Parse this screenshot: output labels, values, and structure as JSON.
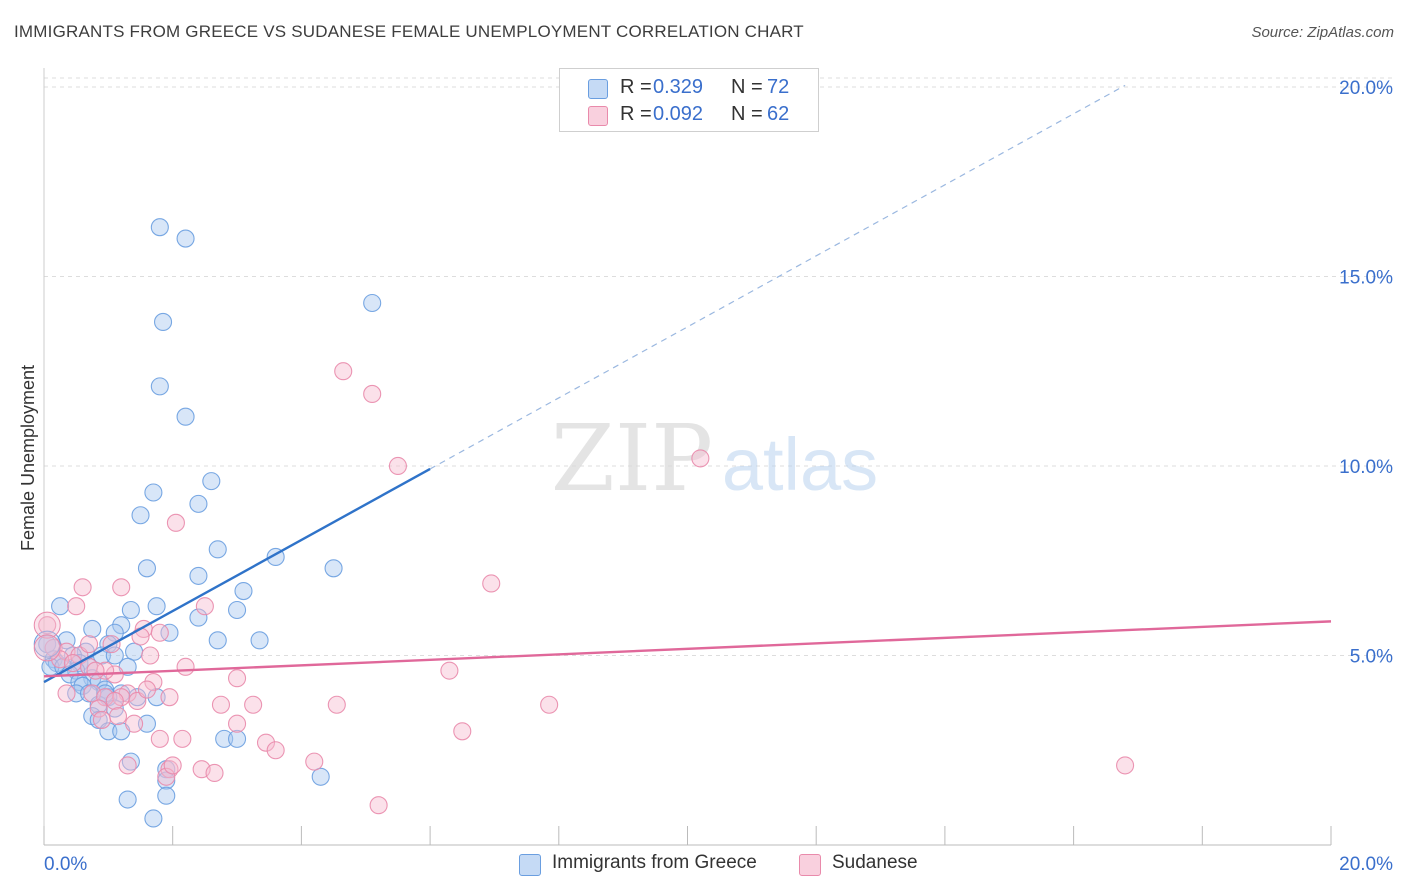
{
  "title": "IMMIGRANTS FROM GREECE VS SUDANESE FEMALE UNEMPLOYMENT CORRELATION CHART",
  "source": "Source: ZipAtlas.com",
  "watermark": {
    "zip": "ZIP",
    "atlas": "atlas"
  },
  "colors": {
    "blue_fill": "#a9c8f0",
    "blue_stroke": "#6a9ee0",
    "blue_line": "#2f73c9",
    "pink_fill": "#f6bcd0",
    "pink_stroke": "#e98aab",
    "pink_line": "#e0689a",
    "axis_text": "#3a6fcc",
    "grid": "#dddddd"
  },
  "legend": [
    {
      "r_label": "R =",
      "r_value": "0.329",
      "n_label": "N =",
      "n_value": "72"
    },
    {
      "r_label": "R =",
      "r_value": "0.092",
      "n_label": "N =",
      "n_value": "62"
    }
  ],
  "bottom_legend": [
    "Immigrants from Greece",
    "Sudanese"
  ],
  "chart_data": {
    "type": "scatter",
    "title": "IMMIGRANTS FROM GREECE VS SUDANESE FEMALE UNEMPLOYMENT CORRELATION CHART",
    "xlabel": "",
    "ylabel": "Female Unemployment",
    "xlim": [
      0,
      20
    ],
    "ylim": [
      0,
      20.5
    ],
    "x_tick_labels": [
      {
        "value": 0,
        "label": "0.0%"
      },
      {
        "value": 20,
        "label": "20.0%"
      }
    ],
    "y_tick_labels": [
      {
        "value": 5,
        "label": "5.0%"
      },
      {
        "value": 10,
        "label": "10.0%"
      },
      {
        "value": 15,
        "label": "15.0%"
      },
      {
        "value": 20,
        "label": "20.0%"
      }
    ],
    "y_grid": [
      5,
      10,
      15,
      20
    ],
    "x_ticks": [
      0,
      2,
      4,
      6,
      8,
      10,
      12,
      14,
      16,
      18,
      20
    ],
    "series": [
      {
        "name": "Immigrants from Greece",
        "color": "blue",
        "regression": {
          "slope": 0.937,
          "intercept": 4.3,
          "solid_to_x": 6.0,
          "dashed_to_x": 16.8
        },
        "points": [
          [
            1.8,
            16.3
          ],
          [
            2.2,
            16.0
          ],
          [
            5.1,
            14.3
          ],
          [
            1.85,
            13.8
          ],
          [
            1.8,
            12.1
          ],
          [
            2.2,
            11.3
          ],
          [
            2.6,
            9.6
          ],
          [
            1.7,
            9.3
          ],
          [
            2.4,
            9.0
          ],
          [
            1.5,
            8.7
          ],
          [
            2.7,
            7.8
          ],
          [
            3.6,
            7.6
          ],
          [
            4.5,
            7.3
          ],
          [
            1.6,
            7.3
          ],
          [
            2.4,
            7.1
          ],
          [
            3.1,
            6.7
          ],
          [
            0.25,
            6.3
          ],
          [
            1.75,
            6.3
          ],
          [
            1.35,
            6.2
          ],
          [
            3.0,
            6.2
          ],
          [
            2.4,
            6.0
          ],
          [
            0.75,
            5.7
          ],
          [
            1.2,
            5.8
          ],
          [
            1.1,
            5.6
          ],
          [
            1.95,
            5.6
          ],
          [
            2.7,
            5.4
          ],
          [
            3.35,
            5.4
          ],
          [
            0.35,
            5.4
          ],
          [
            0.05,
            5.3
          ],
          [
            1.0,
            5.3
          ],
          [
            1.4,
            5.1
          ],
          [
            0.65,
            5.1
          ],
          [
            0.9,
            5.0
          ],
          [
            1.1,
            5.0
          ],
          [
            0.45,
            5.0
          ],
          [
            0.15,
            4.9
          ],
          [
            0.2,
            4.8
          ],
          [
            0.55,
            4.8
          ],
          [
            0.7,
            4.7
          ],
          [
            0.1,
            4.7
          ],
          [
            0.3,
            4.7
          ],
          [
            0.5,
            4.6
          ],
          [
            1.3,
            4.7
          ],
          [
            0.4,
            4.5
          ],
          [
            0.75,
            4.4
          ],
          [
            0.55,
            4.3
          ],
          [
            0.85,
            4.3
          ],
          [
            0.6,
            4.2
          ],
          [
            0.95,
            4.1
          ],
          [
            0.5,
            4.0
          ],
          [
            0.7,
            4.0
          ],
          [
            1.2,
            4.0
          ],
          [
            1.45,
            3.9
          ],
          [
            1.0,
            3.9
          ],
          [
            1.75,
            3.9
          ],
          [
            0.85,
            3.7
          ],
          [
            1.1,
            3.6
          ],
          [
            0.75,
            3.4
          ],
          [
            0.85,
            3.3
          ],
          [
            1.6,
            3.2
          ],
          [
            1.0,
            3.0
          ],
          [
            1.2,
            3.0
          ],
          [
            2.8,
            2.8
          ],
          [
            3.0,
            2.8
          ],
          [
            1.35,
            2.2
          ],
          [
            1.9,
            2.0
          ],
          [
            4.3,
            1.8
          ],
          [
            1.9,
            1.7
          ],
          [
            1.9,
            1.3
          ],
          [
            1.3,
            1.2
          ],
          [
            1.7,
            0.7
          ],
          [
            0.95,
            4.0
          ]
        ]
      },
      {
        "name": "Sudanese",
        "color": "pink",
        "regression": {
          "slope": 0.0725,
          "intercept": 4.45,
          "solid_to_x": 20.0
        },
        "points": [
          [
            4.65,
            12.5
          ],
          [
            5.1,
            11.9
          ],
          [
            5.5,
            10.0
          ],
          [
            10.2,
            10.2
          ],
          [
            2.05,
            8.5
          ],
          [
            6.95,
            6.9
          ],
          [
            0.6,
            6.8
          ],
          [
            1.2,
            6.8
          ],
          [
            2.5,
            6.3
          ],
          [
            0.05,
            5.8
          ],
          [
            1.55,
            5.7
          ],
          [
            1.8,
            5.6
          ],
          [
            1.5,
            5.5
          ],
          [
            1.05,
            5.3
          ],
          [
            0.15,
            5.2
          ],
          [
            0.35,
            5.1
          ],
          [
            0.55,
            5.0
          ],
          [
            0.25,
            4.9
          ],
          [
            0.45,
            4.8
          ],
          [
            2.2,
            4.7
          ],
          [
            0.7,
            4.7
          ],
          [
            1.1,
            4.5
          ],
          [
            0.95,
            4.6
          ],
          [
            6.3,
            4.6
          ],
          [
            3.0,
            4.4
          ],
          [
            1.7,
            4.3
          ],
          [
            0.35,
            4.0
          ],
          [
            0.75,
            4.0
          ],
          [
            1.3,
            4.0
          ],
          [
            0.95,
            3.9
          ],
          [
            1.2,
            3.9
          ],
          [
            1.95,
            3.9
          ],
          [
            1.1,
            3.8
          ],
          [
            1.45,
            3.8
          ],
          [
            2.75,
            3.7
          ],
          [
            3.25,
            3.7
          ],
          [
            4.55,
            3.7
          ],
          [
            7.85,
            3.7
          ],
          [
            0.85,
            3.6
          ],
          [
            1.15,
            3.4
          ],
          [
            0.9,
            3.3
          ],
          [
            1.4,
            3.2
          ],
          [
            3.0,
            3.2
          ],
          [
            6.5,
            3.0
          ],
          [
            1.8,
            2.8
          ],
          [
            2.15,
            2.8
          ],
          [
            3.45,
            2.7
          ],
          [
            3.6,
            2.5
          ],
          [
            2.45,
            2.0
          ],
          [
            1.3,
            2.1
          ],
          [
            1.95,
            2.0
          ],
          [
            1.9,
            1.8
          ],
          [
            2.65,
            1.9
          ],
          [
            4.2,
            2.2
          ],
          [
            16.8,
            2.1
          ],
          [
            5.2,
            1.05
          ],
          [
            0.5,
            6.3
          ],
          [
            1.6,
            4.1
          ],
          [
            1.65,
            5.0
          ],
          [
            0.8,
            4.6
          ],
          [
            2.0,
            2.1
          ],
          [
            0.7,
            5.3
          ]
        ]
      }
    ]
  }
}
